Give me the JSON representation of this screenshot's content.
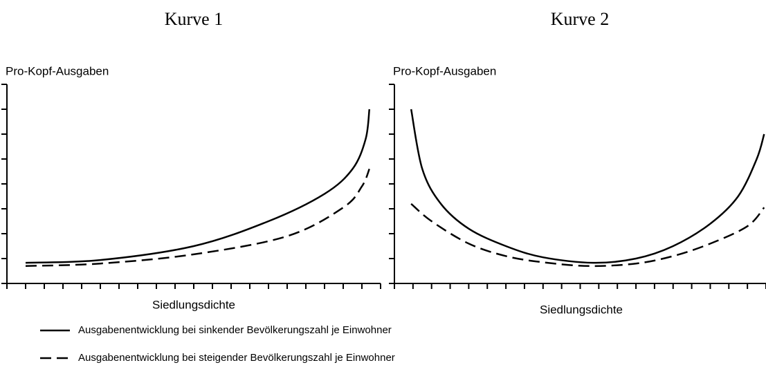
{
  "chart_data": [
    {
      "type": "line",
      "title": "Kurve 1",
      "y_label": "Pro-Kopf-Ausgaben",
      "x_label": "Siedlungsdichte",
      "xlim": [
        0,
        20
      ],
      "xticks": [
        0,
        1,
        2,
        3,
        4,
        5,
        6,
        7,
        8,
        9,
        10,
        11,
        12,
        13,
        14,
        15,
        16,
        17,
        18,
        19,
        20
      ],
      "ylim": [
        0,
        8
      ],
      "yticks": [
        0,
        1,
        2,
        3,
        4,
        5,
        6,
        7,
        8
      ],
      "series": [
        {
          "name": "Ausgabenentwicklung bei sinkender Bevölkerungszahl je Einwohner",
          "color": "#000000",
          "style": "solid",
          "x": [
            1,
            5,
            10,
            14,
            17,
            18.5,
            19.2,
            19.4
          ],
          "values": [
            0.83,
            0.94,
            1.5,
            2.5,
            3.6,
            4.6,
            5.8,
            7
          ]
        },
        {
          "name": "Ausgabenentwicklung bei steigender Bevölkerungszahl je Einwohner",
          "color": "#000000",
          "style": "dashed",
          "x": [
            1,
            5,
            10,
            15,
            18,
            19,
            19.4
          ],
          "values": [
            0.7,
            0.8,
            1.17,
            1.9,
            3.05,
            3.9,
            4.6
          ]
        }
      ]
    },
    {
      "type": "line",
      "title": "Kurve 2",
      "y_label": "Pro-Kopf-Ausgaben",
      "x_label": "Siedlungsdichte",
      "xlim": [
        0,
        20
      ],
      "xticks": [
        0,
        1,
        2,
        3,
        4,
        5,
        6,
        7,
        8,
        9,
        10,
        11,
        12,
        13,
        14,
        15,
        16,
        17,
        18,
        19,
        20
      ],
      "ylim": [
        0,
        8
      ],
      "yticks": [
        0,
        1,
        2,
        3,
        4,
        5,
        6,
        7,
        8
      ],
      "series": [
        {
          "color": "#000000",
          "style": "solid",
          "x": [
            0.9,
            1.5,
            2.5,
            4,
            6,
            8,
            10.7,
            13,
            15,
            17,
            18.5,
            19.5,
            19.9
          ],
          "values": [
            7,
            4.6,
            3.2,
            2.2,
            1.5,
            1.05,
            0.83,
            1.0,
            1.5,
            2.4,
            3.5,
            5,
            6
          ]
        },
        {
          "color": "#000000",
          "style": "dashed",
          "x": [
            0.9,
            2,
            4,
            6,
            8,
            10.5,
            13,
            15,
            17,
            19,
            19.9
          ],
          "values": [
            3.2,
            2.5,
            1.6,
            1.1,
            0.85,
            0.7,
            0.8,
            1.1,
            1.6,
            2.3,
            3.05
          ]
        }
      ]
    }
  ]
}
